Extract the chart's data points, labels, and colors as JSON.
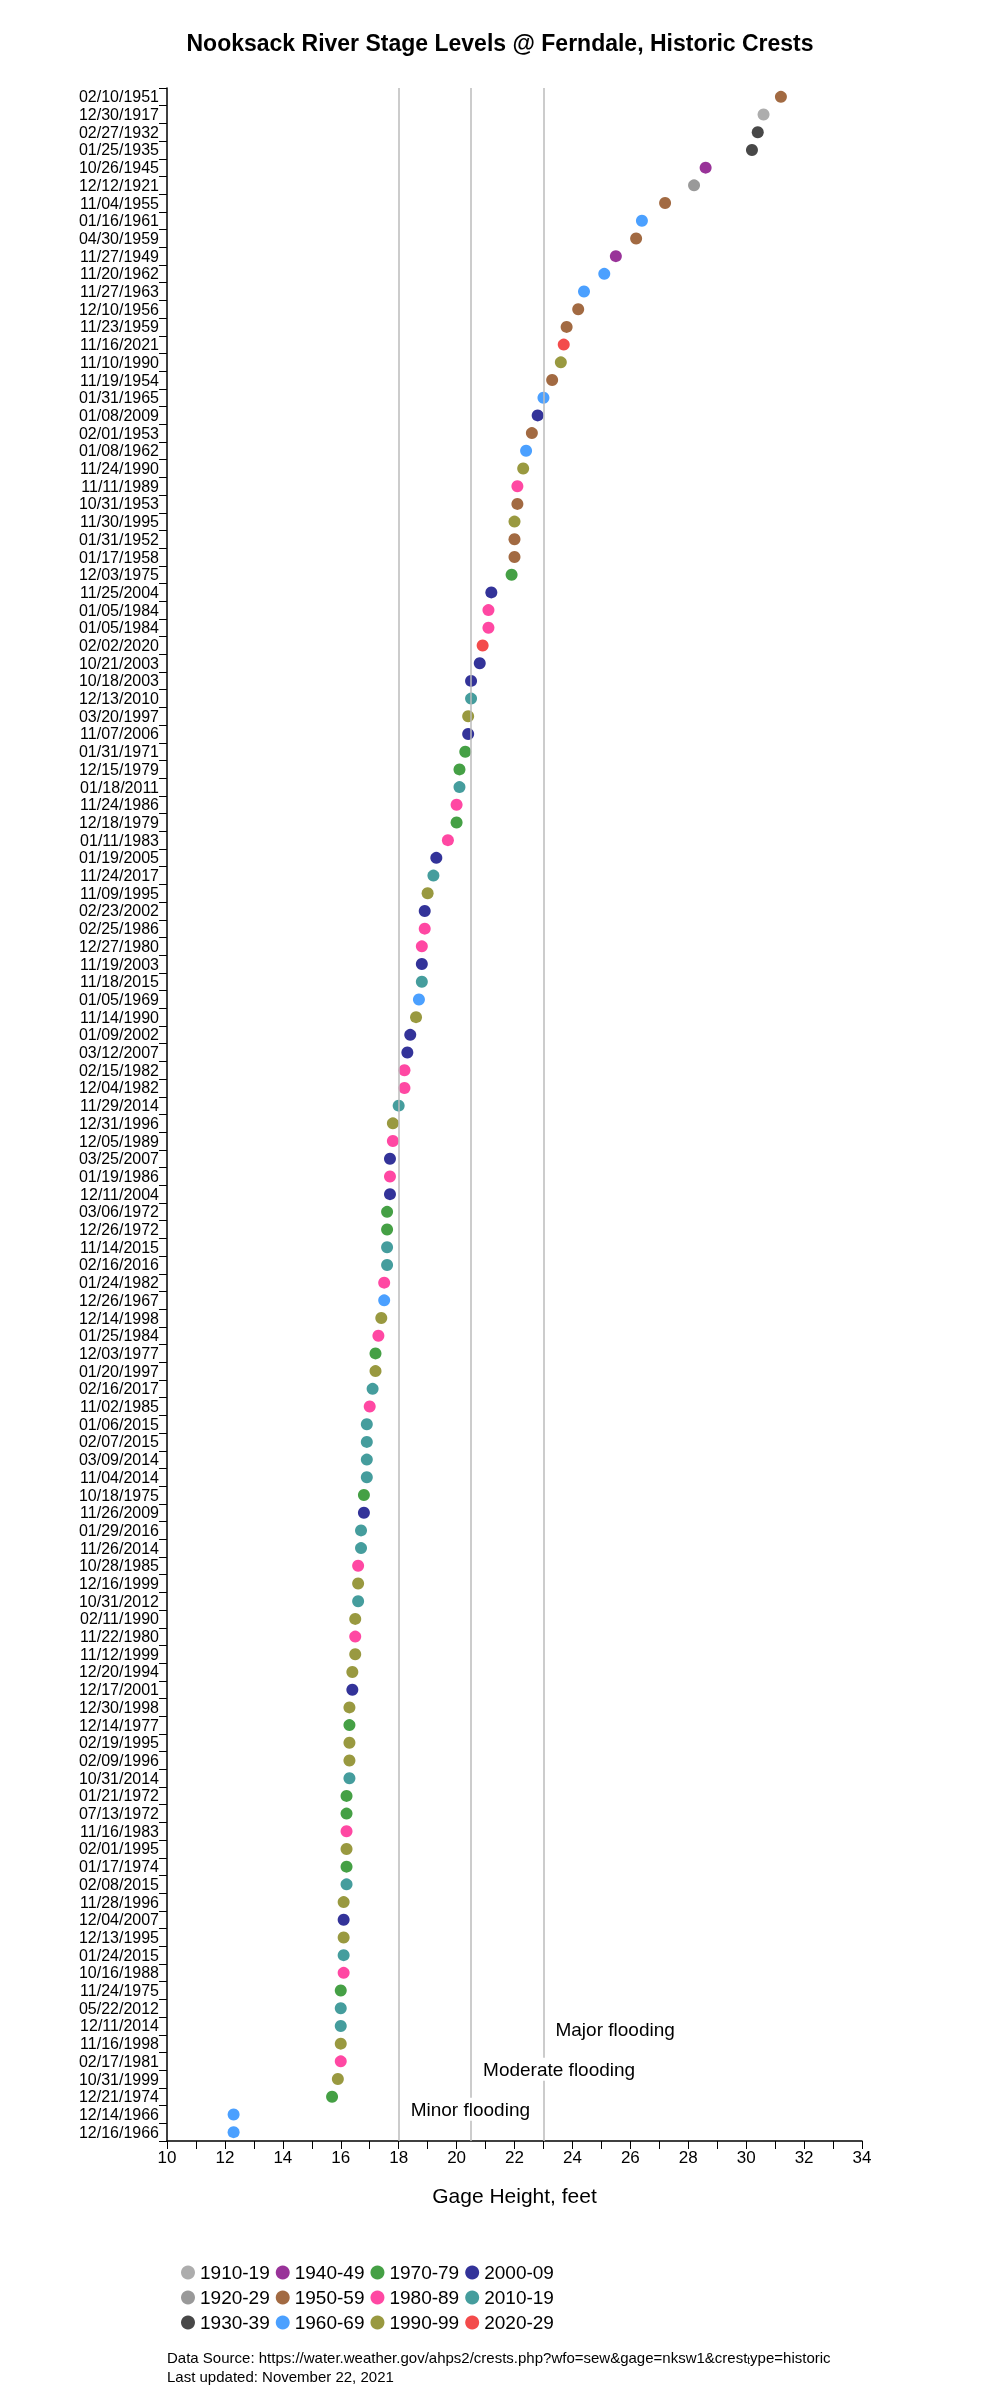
{
  "chart_data": {
    "type": "scatter",
    "orientation": "horizontal",
    "title": "Nooksack River Stage Levels @ Ferndale, Historic Crests",
    "xlabel": "Gage Height, feet",
    "categories": [
      "02/10/1951",
      "12/30/1917",
      "02/27/1932",
      "01/25/1935",
      "10/26/1945",
      "12/12/1921",
      "11/04/1955",
      "01/16/1961",
      "04/30/1959",
      "11/27/1949",
      "11/20/1962",
      "11/27/1963",
      "12/10/1956",
      "11/23/1959",
      "11/16/2021",
      "11/10/1990",
      "11/19/1954",
      "01/31/1965",
      "01/08/2009",
      "02/01/1953",
      "01/08/1962",
      "11/24/1990",
      "11/11/1989",
      "10/31/1953",
      "11/30/1995",
      "01/31/1952",
      "01/17/1958",
      "12/03/1975",
      "11/25/2004",
      "01/05/1984",
      "01/05/1984",
      "02/02/2020",
      "10/21/2003",
      "10/18/2003",
      "12/13/2010",
      "03/20/1997",
      "11/07/2006",
      "01/31/1971",
      "12/15/1979",
      "01/18/2011",
      "11/24/1986",
      "12/18/1979",
      "01/11/1983",
      "01/19/2005",
      "11/24/2017",
      "11/09/1995",
      "02/23/2002",
      "02/25/1986",
      "12/27/1980",
      "11/19/2003",
      "11/18/2015",
      "01/05/1969",
      "11/14/1990",
      "01/09/2002",
      "03/12/2007",
      "02/15/1982",
      "12/04/1982",
      "11/29/2014",
      "12/31/1996",
      "12/05/1989",
      "03/25/2007",
      "01/19/1986",
      "12/11/2004",
      "03/06/1972",
      "12/26/1972",
      "11/14/2015",
      "02/16/2016",
      "01/24/1982",
      "12/26/1967",
      "12/14/1998",
      "01/25/1984",
      "12/03/1977",
      "01/20/1997",
      "02/16/2017",
      "11/02/1985",
      "01/06/2015",
      "02/07/2015",
      "03/09/2014",
      "11/04/2014",
      "10/18/1975",
      "11/26/2009",
      "01/29/2016",
      "11/26/2014",
      "10/28/1985",
      "12/16/1999",
      "10/31/2012",
      "02/11/1990",
      "11/22/1980",
      "11/12/1999",
      "12/20/1994",
      "12/17/2001",
      "12/30/1998",
      "12/14/1977",
      "02/19/1995",
      "02/09/1996",
      "10/31/2014",
      "01/21/1972",
      "07/13/1972",
      "11/16/1983",
      "02/01/1995",
      "01/17/1974",
      "02/08/2015",
      "11/28/1996",
      "12/04/2007",
      "12/13/1995",
      "01/24/2015",
      "10/16/1988",
      "11/24/1975",
      "05/22/2012",
      "12/11/2014",
      "11/16/1998",
      "02/17/1981",
      "10/31/1999",
      "12/21/1974",
      "12/14/1966",
      "12/16/1966"
    ],
    "series": [
      {
        "name": "1910-19",
        "color": "#999999",
        "values": [
          null,
          30.6,
          null,
          null,
          null,
          null,
          null,
          null,
          null,
          null,
          null,
          null,
          null,
          null,
          null,
          null,
          null,
          null,
          null,
          null,
          null,
          null,
          null,
          null,
          null,
          null,
          null,
          null,
          null,
          null,
          null,
          null,
          null,
          null,
          null,
          null,
          null,
          null,
          null,
          null,
          null,
          null,
          null,
          null,
          null,
          null,
          null,
          null,
          null,
          null,
          null,
          null,
          null,
          null,
          null,
          null,
          null,
          null,
          null,
          null,
          null,
          null,
          null,
          null,
          null,
          null,
          null,
          null,
          null,
          null,
          null,
          null,
          null,
          null,
          null,
          null,
          null,
          null,
          null,
          null,
          null,
          null,
          null,
          null,
          null,
          null,
          null,
          null,
          null,
          null,
          null,
          null,
          null,
          null,
          null,
          null,
          null,
          null,
          null,
          null,
          null,
          null,
          null,
          null,
          null,
          null,
          null,
          null,
          null,
          null,
          null,
          null,
          null,
          null,
          null,
          null
        ]
      },
      {
        "name": "1920-29",
        "color": "#808080",
        "values": [
          null,
          null,
          null,
          null,
          null,
          28.2,
          null,
          null,
          null,
          null,
          null,
          null,
          null,
          null,
          null,
          null,
          null,
          null,
          null,
          null,
          null,
          null,
          null,
          null,
          null,
          null,
          null,
          null,
          null,
          null,
          null,
          null,
          null,
          null,
          null,
          null,
          null,
          null,
          null,
          null,
          null,
          null,
          null,
          null,
          null,
          null,
          null,
          null,
          null,
          null,
          null,
          null,
          null,
          null,
          null,
          null,
          null,
          null,
          null,
          null,
          null,
          null,
          null,
          null,
          null,
          null,
          null,
          null,
          null,
          null,
          null,
          null,
          null,
          null,
          null,
          null,
          null,
          null,
          null,
          null,
          null,
          null,
          null,
          null,
          null,
          null,
          null,
          null,
          null,
          null,
          null,
          null,
          null,
          null,
          null,
          null,
          null,
          null,
          null,
          null,
          null,
          null,
          null,
          null,
          null,
          null,
          null,
          null,
          null,
          null,
          null,
          null,
          null,
          null,
          null,
          null
        ]
      },
      {
        "name": "1930-39",
        "color": "#1a1a1a",
        "values": [
          null,
          null,
          30.4,
          30.2,
          null,
          null,
          null,
          null,
          null,
          null,
          null,
          null,
          null,
          null,
          null,
          null,
          null,
          null,
          null,
          null,
          null,
          null,
          null,
          null,
          null,
          null,
          null,
          null,
          null,
          null,
          null,
          null,
          null,
          null,
          null,
          null,
          null,
          null,
          null,
          null,
          null,
          null,
          null,
          null,
          null,
          null,
          null,
          null,
          null,
          null,
          null,
          null,
          null,
          null,
          null,
          null,
          null,
          null,
          null,
          null,
          null,
          null,
          null,
          null,
          null,
          null,
          null,
          null,
          null,
          null,
          null,
          null,
          null,
          null,
          null,
          null,
          null,
          null,
          null,
          null,
          null,
          null,
          null,
          null,
          null,
          null,
          null,
          null,
          null,
          null,
          null,
          null,
          null,
          null,
          null,
          null,
          null,
          null,
          null,
          null,
          null,
          null,
          null,
          null,
          null,
          null,
          null,
          null,
          null,
          null,
          null,
          null,
          null,
          null,
          null,
          null
        ]
      },
      {
        "name": "1940-49",
        "color": "#800080",
        "values": [
          null,
          null,
          null,
          null,
          28.6,
          null,
          null,
          null,
          null,
          25.5,
          null,
          null,
          null,
          null,
          null,
          null,
          null,
          null,
          null,
          null,
          null,
          null,
          null,
          null,
          null,
          null,
          null,
          null,
          null,
          null,
          null,
          null,
          null,
          null,
          null,
          null,
          null,
          null,
          null,
          null,
          null,
          null,
          null,
          null,
          null,
          null,
          null,
          null,
          null,
          null,
          null,
          null,
          null,
          null,
          null,
          null,
          null,
          null,
          null,
          null,
          null,
          null,
          null,
          null,
          null,
          null,
          null,
          null,
          null,
          null,
          null,
          null,
          null,
          null,
          null,
          null,
          null,
          null,
          null,
          null,
          null,
          null,
          null,
          null,
          null,
          null,
          null,
          null,
          null,
          null,
          null,
          null,
          null,
          null,
          null,
          null,
          null,
          null,
          null,
          null,
          null,
          null,
          null,
          null,
          null,
          null,
          null,
          null,
          null,
          null,
          null,
          null,
          null,
          null,
          null,
          null
        ]
      },
      {
        "name": "1950-59",
        "color": "#8b4513",
        "values": [
          31.2,
          null,
          null,
          null,
          null,
          null,
          27.2,
          null,
          26.2,
          null,
          null,
          null,
          24.2,
          23.8,
          null,
          null,
          23.3,
          null,
          null,
          22.6,
          null,
          null,
          null,
          22.1,
          null,
          22.0,
          22.0,
          null,
          null,
          null,
          null,
          null,
          null,
          null,
          null,
          null,
          null,
          null,
          null,
          null,
          null,
          null,
          null,
          null,
          null,
          null,
          null,
          null,
          null,
          null,
          null,
          null,
          null,
          null,
          null,
          null,
          null,
          null,
          null,
          null,
          null,
          null,
          null,
          null,
          null,
          null,
          null,
          null,
          null,
          null,
          null,
          null,
          null,
          null,
          null,
          null,
          null,
          null,
          null,
          null,
          null,
          null,
          null,
          null,
          null,
          null,
          null,
          null,
          null,
          null,
          null,
          null,
          null,
          null,
          null,
          null,
          null,
          null,
          null,
          null,
          null,
          null,
          null,
          null,
          null,
          null,
          null,
          null,
          null,
          null,
          null,
          null,
          null,
          null,
          null,
          null
        ]
      },
      {
        "name": "1960-69",
        "color": "#1e88ff",
        "values": [
          null,
          null,
          null,
          null,
          null,
          null,
          null,
          26.4,
          null,
          null,
          25.1,
          24.4,
          null,
          null,
          null,
          null,
          null,
          23.0,
          null,
          null,
          22.4,
          null,
          null,
          null,
          null,
          null,
          null,
          null,
          null,
          null,
          null,
          null,
          null,
          null,
          null,
          null,
          null,
          null,
          null,
          null,
          null,
          null,
          null,
          null,
          null,
          null,
          null,
          null,
          null,
          null,
          null,
          18.7,
          null,
          null,
          null,
          null,
          null,
          null,
          null,
          null,
          null,
          null,
          null,
          null,
          null,
          null,
          null,
          null,
          17.5,
          null,
          null,
          null,
          null,
          null,
          null,
          null,
          null,
          null,
          null,
          null,
          null,
          null,
          null,
          null,
          null,
          null,
          null,
          null,
          null,
          null,
          null,
          null,
          null,
          null,
          null,
          null,
          null,
          null,
          null,
          null,
          null,
          null,
          null,
          null,
          null,
          null,
          null,
          null,
          null,
          null,
          null,
          null,
          null,
          null,
          12.3,
          12.3
        ]
      },
      {
        "name": "1970-79",
        "color": "#178817",
        "values": [
          null,
          null,
          null,
          null,
          null,
          null,
          null,
          null,
          null,
          null,
          null,
          null,
          null,
          null,
          null,
          null,
          null,
          null,
          null,
          null,
          null,
          null,
          null,
          null,
          null,
          null,
          null,
          21.9,
          null,
          null,
          null,
          null,
          null,
          null,
          null,
          null,
          null,
          20.3,
          20.1,
          null,
          null,
          20.0,
          null,
          null,
          null,
          null,
          null,
          null,
          null,
          null,
          null,
          null,
          null,
          null,
          null,
          null,
          null,
          null,
          null,
          null,
          null,
          null,
          null,
          17.6,
          17.6,
          null,
          null,
          null,
          null,
          null,
          null,
          17.2,
          null,
          null,
          null,
          null,
          null,
          null,
          null,
          16.8,
          null,
          null,
          null,
          null,
          null,
          null,
          null,
          null,
          null,
          null,
          null,
          null,
          16.3,
          null,
          null,
          null,
          16.2,
          16.2,
          null,
          null,
          16.2,
          null,
          null,
          null,
          null,
          null,
          null,
          16.0,
          null,
          null,
          null,
          null,
          null,
          15.7,
          null,
          null
        ]
      },
      {
        "name": "1980-89",
        "color": "#ff1a8c",
        "values": [
          null,
          null,
          null,
          null,
          null,
          null,
          null,
          null,
          null,
          null,
          null,
          null,
          null,
          null,
          null,
          null,
          null,
          null,
          null,
          null,
          null,
          null,
          22.1,
          null,
          null,
          null,
          null,
          null,
          null,
          21.1,
          21.1,
          null,
          null,
          null,
          null,
          null,
          null,
          null,
          null,
          null,
          20.0,
          null,
          19.7,
          null,
          null,
          null,
          null,
          18.9,
          18.8,
          null,
          null,
          null,
          null,
          null,
          null,
          18.2,
          18.2,
          null,
          null,
          17.8,
          null,
          17.7,
          null,
          null,
          null,
          null,
          null,
          17.5,
          null,
          null,
          17.3,
          null,
          null,
          null,
          17.0,
          null,
          null,
          null,
          null,
          null,
          null,
          null,
          null,
          16.6,
          null,
          null,
          null,
          16.5,
          null,
          null,
          null,
          null,
          null,
          null,
          null,
          null,
          null,
          null,
          16.2,
          null,
          null,
          null,
          null,
          null,
          null,
          null,
          16.1,
          null,
          null,
          null,
          null,
          16.0,
          null,
          null,
          null,
          null
        ]
      },
      {
        "name": "1990-99",
        "color": "#808010",
        "values": [
          null,
          null,
          null,
          null,
          null,
          null,
          null,
          null,
          null,
          null,
          null,
          null,
          null,
          null,
          null,
          23.6,
          null,
          null,
          null,
          null,
          null,
          22.3,
          null,
          null,
          22.0,
          null,
          null,
          null,
          null,
          null,
          null,
          null,
          null,
          null,
          null,
          20.4,
          null,
          null,
          null,
          null,
          null,
          null,
          null,
          null,
          null,
          19.0,
          null,
          null,
          null,
          null,
          null,
          null,
          18.6,
          null,
          null,
          null,
          null,
          null,
          17.8,
          null,
          null,
          null,
          null,
          null,
          null,
          null,
          null,
          null,
          null,
          17.4,
          null,
          null,
          17.2,
          null,
          null,
          null,
          null,
          null,
          null,
          null,
          null,
          null,
          null,
          null,
          16.6,
          null,
          16.5,
          null,
          16.5,
          16.4,
          null,
          16.3,
          null,
          16.3,
          16.3,
          null,
          null,
          null,
          null,
          16.2,
          null,
          null,
          16.1,
          null,
          16.1,
          null,
          null,
          null,
          null,
          null,
          16.0,
          null,
          15.9,
          null,
          null,
          null
        ]
      },
      {
        "name": "2000-09",
        "color": "#000080",
        "values": [
          null,
          null,
          null,
          null,
          null,
          null,
          null,
          null,
          null,
          null,
          null,
          null,
          null,
          null,
          null,
          null,
          null,
          null,
          22.8,
          null,
          null,
          null,
          null,
          null,
          null,
          null,
          null,
          null,
          21.2,
          null,
          null,
          null,
          20.8,
          20.5,
          null,
          null,
          20.4,
          null,
          null,
          null,
          null,
          null,
          null,
          19.3,
          null,
          null,
          18.9,
          null,
          null,
          18.8,
          null,
          null,
          null,
          18.4,
          18.3,
          null,
          null,
          null,
          null,
          null,
          17.7,
          null,
          17.7,
          null,
          null,
          null,
          null,
          null,
          null,
          null,
          null,
          null,
          null,
          null,
          null,
          null,
          null,
          null,
          null,
          null,
          16.8,
          null,
          null,
          null,
          null,
          null,
          null,
          null,
          null,
          null,
          16.4,
          null,
          null,
          null,
          null,
          null,
          null,
          null,
          null,
          null,
          null,
          null,
          null,
          16.1,
          null,
          null,
          null,
          null,
          null,
          null,
          null,
          null,
          null,
          null,
          null,
          null
        ]
      },
      {
        "name": "2010-19",
        "color": "#178484",
        "values": [
          null,
          null,
          null,
          null,
          null,
          null,
          null,
          null,
          null,
          null,
          null,
          null,
          null,
          null,
          null,
          null,
          null,
          null,
          null,
          null,
          null,
          null,
          null,
          null,
          null,
          null,
          null,
          null,
          null,
          null,
          null,
          null,
          null,
          null,
          20.5,
          null,
          null,
          null,
          null,
          20.1,
          null,
          null,
          null,
          null,
          19.2,
          null,
          null,
          null,
          null,
          null,
          18.8,
          null,
          null,
          null,
          null,
          null,
          null,
          18.0,
          null,
          null,
          null,
          null,
          null,
          null,
          null,
          17.6,
          17.6,
          null,
          null,
          null,
          null,
          null,
          null,
          17.1,
          null,
          16.9,
          16.9,
          16.9,
          16.9,
          null,
          null,
          16.7,
          16.7,
          null,
          null,
          16.6,
          null,
          null,
          null,
          null,
          null,
          null,
          null,
          null,
          null,
          16.3,
          null,
          null,
          null,
          null,
          null,
          16.2,
          null,
          null,
          null,
          16.1,
          null,
          null,
          16.0,
          16.0,
          null,
          null,
          null,
          null,
          null,
          null
        ]
      },
      {
        "name": "2020-29",
        "color": "#f01e1e",
        "values": [
          null,
          null,
          null,
          null,
          null,
          null,
          null,
          null,
          null,
          null,
          null,
          null,
          null,
          null,
          23.7,
          null,
          null,
          null,
          null,
          null,
          null,
          null,
          null,
          null,
          null,
          null,
          null,
          null,
          null,
          null,
          null,
          20.9,
          null,
          null,
          null,
          null,
          null,
          null,
          null,
          null,
          null,
          null,
          null,
          null,
          null,
          null,
          null,
          null,
          null,
          null,
          null,
          null,
          null,
          null,
          null,
          null,
          null,
          null,
          null,
          null,
          null,
          null,
          null,
          null,
          null,
          null,
          null,
          null,
          null,
          null,
          null,
          null,
          null,
          null,
          null,
          null,
          null,
          null,
          null,
          null,
          null,
          null,
          null,
          null,
          null,
          null,
          null,
          null,
          null,
          null,
          null,
          null,
          null,
          null,
          null,
          null,
          null,
          null,
          null,
          null,
          null,
          null,
          null,
          null,
          null,
          null,
          null,
          null,
          null,
          null,
          null,
          null,
          null,
          null,
          null,
          null
        ]
      }
    ],
    "xlim": [
      10,
      34
    ],
    "xticks": [
      10,
      {
        "value": 11,
        "label": null
      },
      12,
      {
        "value": 13,
        "label": null
      },
      14,
      {
        "value": 15,
        "label": null
      },
      16,
      {
        "value": 17,
        "label": null
      },
      18,
      {
        "value": 19,
        "label": null
      },
      20,
      {
        "value": 21,
        "label": null
      },
      22,
      {
        "value": 23,
        "label": null
      },
      24,
      {
        "value": 25,
        "label": null
      },
      26,
      {
        "value": 27,
        "label": null
      },
      28,
      {
        "value": 29,
        "label": null
      },
      30,
      {
        "value": 31,
        "label": null
      },
      32,
      {
        "value": 33,
        "label": null
      },
      34
    ],
    "ref_lines": [
      {
        "axis": "x",
        "value": 18,
        "label": "Minor flooding",
        "color": "#bbbbbb"
      },
      {
        "axis": "x",
        "value": 20.5,
        "label": "Moderate flooding",
        "color": "#bbbbbb"
      },
      {
        "axis": "x",
        "value": 23,
        "label": "Major flooding",
        "color": "#bbbbbb"
      }
    ],
    "annotations": [
      "Data Source: https://water.weather.gov/ahps2/crests.php?wfo=sew&gage=nksw1&crest$_{t}$ype=historic",
      "Last updated: November 22, 2021"
    ],
    "grid": false,
    "legend": "bottom",
    "marker": "circle"
  }
}
